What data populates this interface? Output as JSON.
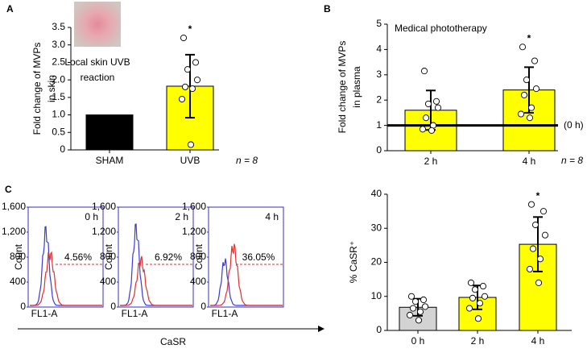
{
  "chart_data": [
    {
      "type": "bar",
      "panel_label": "A",
      "ylabel": [
        "Fold change of MVPs",
        "in skin"
      ],
      "inset_label": [
        "Local skin UVB",
        "reaction"
      ],
      "categories": [
        "SHAM",
        "UVB"
      ],
      "values": [
        1.0,
        1.82
      ],
      "errors": [
        null,
        0.9
      ],
      "points": [
        [],
        [
          3.2,
          2.5,
          2.3,
          2.0,
          1.8,
          1.75,
          1.45,
          0.15
        ]
      ],
      "colors": [
        "#000000",
        "#ffff00"
      ],
      "ylim": [
        0,
        3.5
      ],
      "yticks": [
        0,
        0.5,
        {
          "value": 1,
          "label": "1.0"
        },
        1.5,
        {
          "value": 2,
          "label": "2.0"
        },
        2.5,
        {
          "value": 3,
          "label": "3.0"
        },
        3.5
      ],
      "significance": {
        "category": "UVB",
        "label": "*"
      },
      "n_label": "n = 8"
    },
    {
      "type": "bar",
      "panel_label": "B",
      "title": "Medical phototherapy",
      "ylabel": [
        "Fold change of MVPs",
        "in plasma"
      ],
      "categories": [
        "2 h",
        "4 h"
      ],
      "values": [
        1.6,
        2.4
      ],
      "errors": [
        0.78,
        0.9
      ],
      "points": [
        [
          3.15,
          1.95,
          1.85,
          1.7,
          1.3,
          1.0,
          0.85,
          0.8
        ],
        [
          4.1,
          3.55,
          2.8,
          2.45,
          2.2,
          1.7,
          1.45,
          1.3
        ]
      ],
      "colors": [
        "#ffff00",
        "#ffff00"
      ],
      "ylim": [
        0,
        5
      ],
      "yticks": [
        0,
        1,
        2,
        3,
        4,
        5
      ],
      "reference_line": {
        "value": 1,
        "label": "(0 h)"
      },
      "significance": {
        "category": "4 h",
        "label": "*"
      },
      "n_label": "n = 8"
    },
    {
      "type": "flow",
      "panel_label": "C",
      "xlabel": "CaSR",
      "panel_xlabel": "FL1-A",
      "panel_ylabel": "Count",
      "yticks": [
        0,
        400,
        800,
        {
          "value": 1200,
          "label": "1,200"
        },
        {
          "value": 1600,
          "label": "1,600"
        }
      ],
      "panels": [
        {
          "label": "0 h",
          "gate": "4.56%"
        },
        {
          "label": "2 h",
          "gate": "6.92%"
        },
        {
          "label": "4 h",
          "gate": "36.05%"
        }
      ]
    },
    {
      "type": "bar",
      "ylabel": [
        "% CaSR⁺"
      ],
      "categories": [
        "0 h",
        "2 h",
        "4 h"
      ],
      "values": [
        6.8,
        9.7,
        25.3
      ],
      "errors": [
        2.5,
        3.5,
        8.0
      ],
      "points": [
        [
          10,
          9,
          8.5,
          7,
          6.5,
          5.5,
          4.5,
          3
        ],
        [
          14,
          13,
          12,
          10,
          9.5,
          8,
          6.5,
          3.5
        ],
        [
          37,
          35,
          31,
          28,
          24,
          21,
          18,
          14
        ]
      ],
      "colors": [
        "#d3d3d3",
        "#ffff00",
        "#ffff00"
      ],
      "ylim": [
        0,
        40
      ],
      "yticks": [
        0,
        10,
        20,
        30,
        40
      ],
      "significance": {
        "category": "4 h",
        "label": "*"
      }
    }
  ]
}
